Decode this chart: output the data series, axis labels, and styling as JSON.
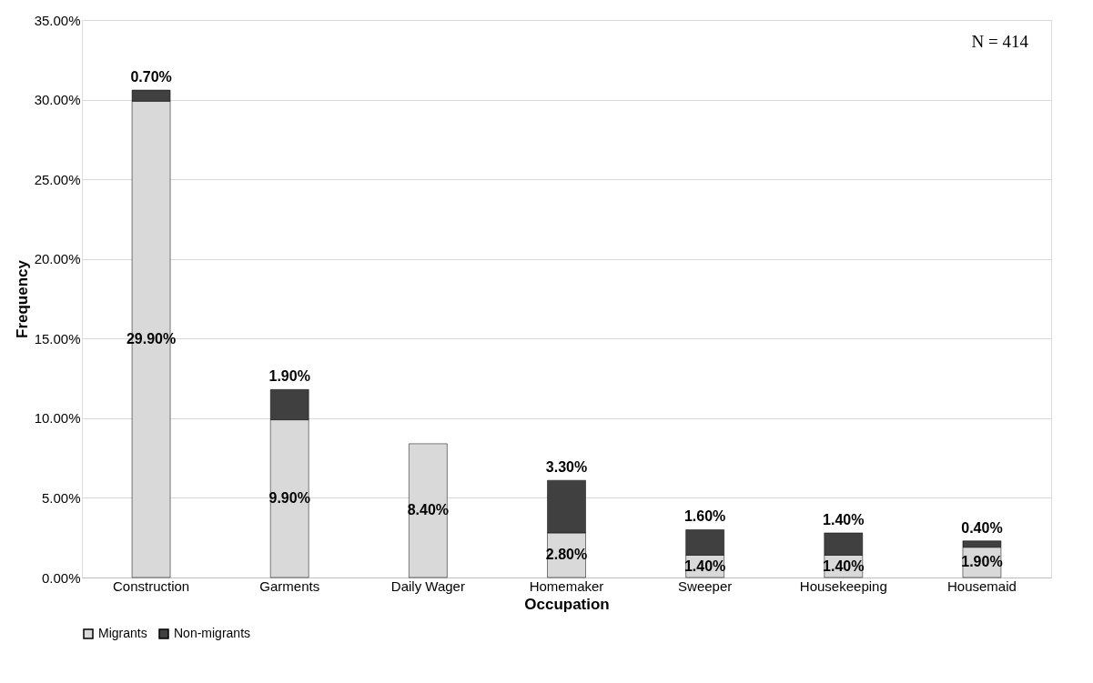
{
  "chart_data": {
    "type": "bar",
    "stacked": true,
    "xlabel": "Occupation",
    "ylabel": "Frequency",
    "categories": [
      "Construction",
      "Garments",
      "Daily Wager",
      "Homemaker",
      "Sweeper",
      "Housekeeping",
      "Housemaid"
    ],
    "series": [
      {
        "name": "Migrants",
        "color": "#d9d9d9",
        "values": [
          29.9,
          9.9,
          8.4,
          2.8,
          1.4,
          1.4,
          1.9
        ],
        "value_labels": [
          "29.90%",
          "9.90%",
          "8.40%",
          "2.80%",
          "1.40%",
          "1.40%",
          "1.90%"
        ]
      },
      {
        "name": "Non-migrants",
        "color": "#404040",
        "values": [
          0.7,
          1.9,
          null,
          3.3,
          1.6,
          1.4,
          0.4
        ],
        "value_labels": [
          "0.70%",
          "1.90%",
          null,
          "3.30%",
          "1.60%",
          "1.40%",
          "0.40%"
        ]
      }
    ],
    "ylim": [
      0,
      35
    ],
    "yticks": [
      {
        "value": 0,
        "label": "0.00%"
      },
      {
        "value": 5,
        "label": "5.00%"
      },
      {
        "value": 10,
        "label": "10.00%"
      },
      {
        "value": 15,
        "label": "15.00%"
      },
      {
        "value": 20,
        "label": "20.00%"
      },
      {
        "value": 25,
        "label": "25.00%"
      },
      {
        "value": 30,
        "label": "30.00%"
      },
      {
        "value": 35,
        "label": "35.00%"
      }
    ],
    "grid": "y",
    "legend": "bottom",
    "annotations": [
      "N = 414"
    ]
  }
}
